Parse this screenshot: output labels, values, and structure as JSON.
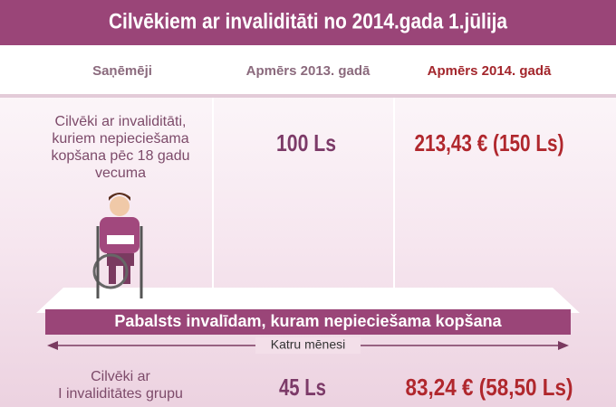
{
  "header": {
    "title": "Cilvēkiem ar invaliditāti no 2014.gada 1.jūlija"
  },
  "table": {
    "columns": [
      "Saņēmēji",
      "Apmērs 2013. gadā",
      "Apmērs 2014. gadā"
    ],
    "rows": [
      {
        "recipient": [
          "Cilvēki ar invaliditāti,",
          "kuriem nepieciešama",
          "kopšana pēc 18 gadu",
          "vecuma"
        ],
        "amount_2013": "100 Ls",
        "amount_2014": "213,43 € (150 Ls)"
      },
      {
        "recipient": [
          "Cilvēki ar",
          "I invaliditātes grupu"
        ],
        "amount_2013": "45 Ls",
        "amount_2014": "83,24 € (58,50 Ls)"
      }
    ]
  },
  "banner": {
    "title": "Pabalsts invalīdam, kuram nepieciešama kopšana",
    "period": "Katru mēnesi"
  }
}
